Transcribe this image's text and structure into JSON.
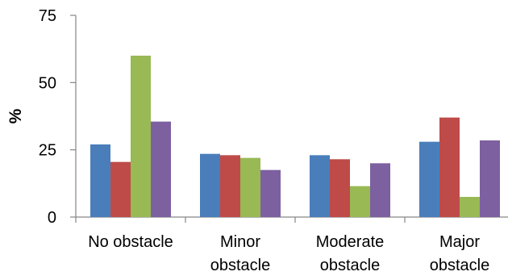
{
  "chart_data": {
    "type": "bar",
    "title": "",
    "xlabel": "",
    "ylabel": "%",
    "ylim": [
      0,
      75
    ],
    "yticks": [
      0,
      25,
      50,
      75
    ],
    "grid": false,
    "legend": "none",
    "categories": [
      [
        "No obstacle"
      ],
      [
        "Minor",
        "obstacle"
      ],
      [
        "Moderate",
        "obstacle"
      ],
      [
        "Major",
        "obstacle"
      ]
    ],
    "series": [
      {
        "color": "#4a7ebb",
        "values": [
          27,
          23.5,
          23,
          28
        ]
      },
      {
        "color": "#be4b48",
        "values": [
          20.5,
          23,
          21.5,
          37
        ]
      },
      {
        "color": "#98b954",
        "values": [
          60,
          22,
          11.5,
          7.5
        ]
      },
      {
        "color": "#7d60a0",
        "values": [
          35.5,
          17.5,
          20,
          28.5
        ]
      }
    ]
  }
}
